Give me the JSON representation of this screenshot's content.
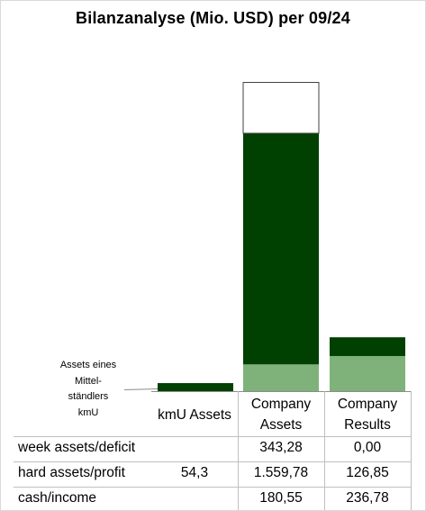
{
  "chart_data": {
    "type": "bar",
    "stacked": true,
    "title": "Bilanzanalyse  (Mio. USD) per 09/24",
    "categories": [
      "kmU Assets",
      "Company Assets",
      "Company Results"
    ],
    "category_labels": [
      [
        "kmU Assets"
      ],
      [
        "Company",
        "Assets"
      ],
      [
        "Company",
        "Results"
      ]
    ],
    "series": [
      {
        "name": "cash/income",
        "color": "#7fb27a",
        "values": [
          null,
          180.55,
          236.78
        ],
        "labels": [
          "",
          "180,55",
          "236,78"
        ]
      },
      {
        "name": "hard assets/profit",
        "color": "#004000",
        "values": [
          54.3,
          1559.78,
          126.85
        ],
        "labels": [
          "54,3",
          "1.559,78",
          "126,85"
        ]
      },
      {
        "name": "week assets/deficit",
        "color": "#ffffff",
        "values": [
          null,
          343.28,
          0.0
        ],
        "labels": [
          "",
          "343,28",
          "0,00"
        ]
      }
    ],
    "annotation": [
      "Assets eines",
      "Mittel-",
      "ständlers",
      "kmU"
    ],
    "grid": false,
    "legend": "data table"
  }
}
